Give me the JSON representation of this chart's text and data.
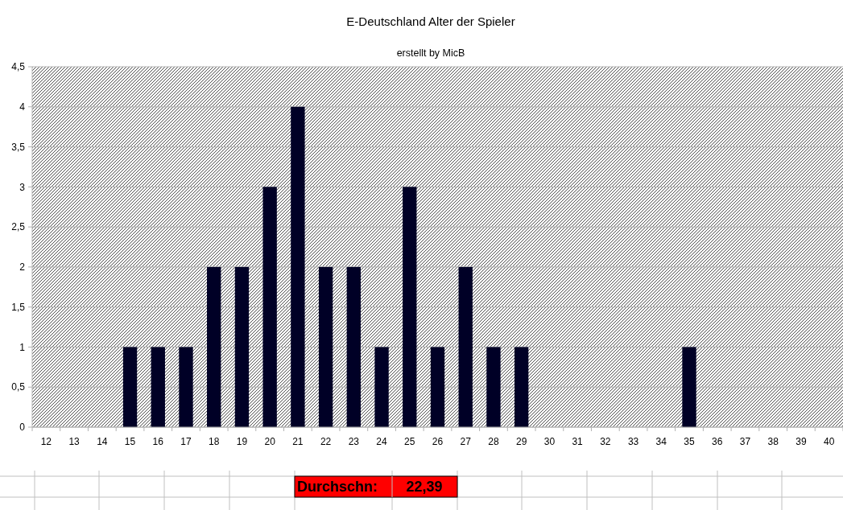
{
  "chart_data": {
    "type": "bar",
    "title": "E-Deutschland Alter der Spieler",
    "subtitle": "erstellt by MicB",
    "categories": [
      "12",
      "13",
      "14",
      "15",
      "16",
      "17",
      "18",
      "19",
      "20",
      "21",
      "22",
      "23",
      "24",
      "25",
      "26",
      "27",
      "28",
      "29",
      "30",
      "31",
      "32",
      "33",
      "34",
      "35",
      "36",
      "37",
      "38",
      "39",
      "40"
    ],
    "values": [
      0,
      0,
      0,
      1,
      1,
      1,
      2,
      2,
      3,
      4,
      2,
      2,
      1,
      3,
      1,
      2,
      1,
      1,
      0,
      0,
      0,
      0,
      0,
      1,
      0,
      0,
      0,
      0,
      0
    ],
    "color": "#000026",
    "ylim": [
      0,
      4.5
    ],
    "yticks": [
      0,
      {
        "value": 0.5,
        "label": "0,5"
      },
      1,
      {
        "value": 1.5,
        "label": "1,5"
      },
      2,
      {
        "value": 2.5,
        "label": "2,5"
      },
      3,
      {
        "value": 3.5,
        "label": "3,5"
      },
      4,
      {
        "value": 4.5,
        "label": "4,5"
      }
    ],
    "grid": "y",
    "annotations": [
      "Durchschn:",
      "22,39"
    ]
  }
}
